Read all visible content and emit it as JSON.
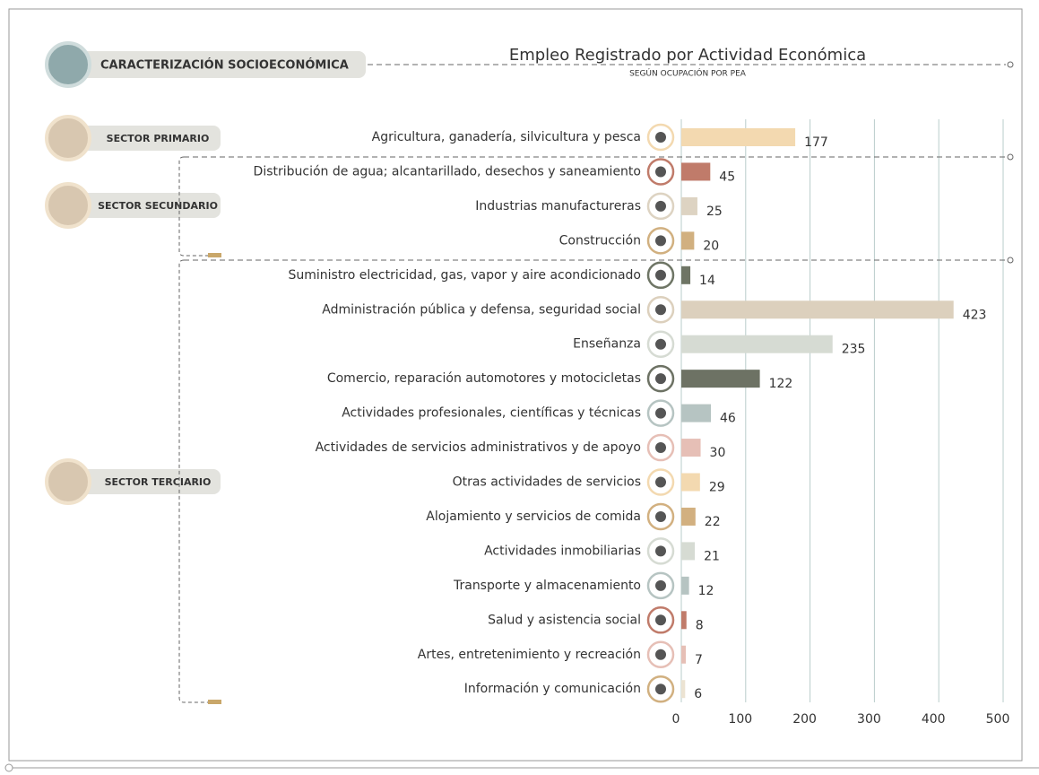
{
  "header": "CARACTERIZACIÓN SOCIOECONÓMICA",
  "sectors": [
    "SECTOR PRIMARIO",
    "SECTOR SECUNDARIO",
    "SECTOR TERCIARIO"
  ],
  "chart_data": {
    "type": "barh",
    "title": "Empleo Registrado por Actividad Económica",
    "subtitle": "SEGÚN OCUPACIÓN POR PEA",
    "categories": [
      "Agricultura, ganadería, silvicultura y pesca",
      "Distribución de agua; alcantarillado, desechos y saneamiento",
      "Industrias manufactureras",
      "Construcción",
      "Suministro electricidad, gas, vapor y aire acondicionado",
      "Administración pública y defensa, seguridad social",
      "Enseñanza",
      "Comercio, reparación automotores y motocicletas",
      "Actividades profesionales, científicas y técnicas",
      "Actividades de servicios administrativos y de apoyo",
      "Otras actividades de servicios",
      "Alojamiento y servicios de comida",
      "Actividades inmobiliarias",
      "Transporte y almacenamiento",
      "Salud y asistencia social",
      "Artes, entretenimiento y recreación",
      "Información y comunicación"
    ],
    "values": [
      177,
      45,
      25,
      20,
      14,
      423,
      235,
      122,
      46,
      30,
      29,
      22,
      21,
      12,
      8,
      7,
      6
    ],
    "colors": [
      "#f3d9b0",
      "#c07b6a",
      "#ddd3c2",
      "#d1b080",
      "#6e7565",
      "#dcd0bd",
      "#d6dbd3",
      "#6d7264",
      "#b6c4c2",
      "#e6bfb6",
      "#f3d9b0",
      "#d2b080",
      "#d6dbd3",
      "#b6c4c2",
      "#c07b6a",
      "#e6bfb6",
      "#ece3d2"
    ],
    "xlim": [
      0,
      500
    ],
    "xticks": [
      0,
      100,
      200,
      300,
      400,
      500
    ],
    "grid": true
  }
}
